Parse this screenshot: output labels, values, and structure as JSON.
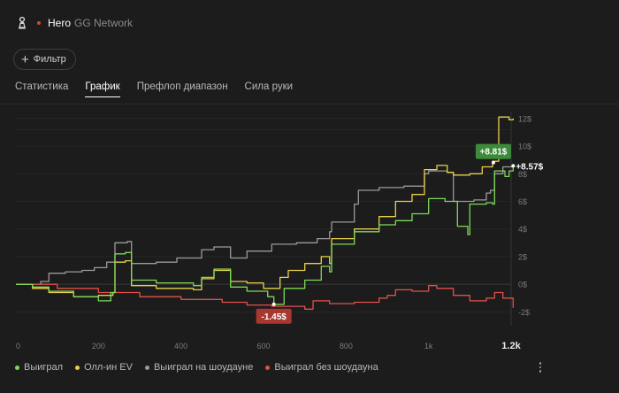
{
  "header": {
    "player": "Hero",
    "network": "GG Network"
  },
  "filter": {
    "label": "Фильтр"
  },
  "tabs": [
    {
      "label": "Статистика",
      "active": false
    },
    {
      "label": "График",
      "active": true
    },
    {
      "label": "Префлоп диапазон",
      "active": false
    },
    {
      "label": "Сила руки",
      "active": false
    }
  ],
  "legend": [
    {
      "label": "Выиграл",
      "color": "#7ed957"
    },
    {
      "label": "Олл-ин EV",
      "color": "#e8d04a"
    },
    {
      "label": "Выиграл на шоудауне",
      "color": "#9a9a9a"
    },
    {
      "label": "Выиграл без шоудауна",
      "color": "#e0504b"
    }
  ],
  "chart_data": {
    "type": "line",
    "xlim": [
      0,
      1200
    ],
    "ylim": [
      -3,
      12.5
    ],
    "x_ticks": [
      {
        "value": 0,
        "label": "0"
      },
      {
        "value": 200,
        "label": "200"
      },
      {
        "value": 400,
        "label": "400"
      },
      {
        "value": 600,
        "label": "600"
      },
      {
        "value": 800,
        "label": "800"
      },
      {
        "value": 1000,
        "label": "1k"
      },
      {
        "value": 1200,
        "label": "1.2k"
      }
    ],
    "y_ticks": [
      {
        "value": 12,
        "label": "12$"
      },
      {
        "value": 10,
        "label": "10$"
      },
      {
        "value": 8,
        "label": "8$"
      },
      {
        "value": 6,
        "label": "6$"
      },
      {
        "value": 4,
        "label": "4$"
      },
      {
        "value": 2,
        "label": "2$"
      },
      {
        "value": 0,
        "label": "0$"
      },
      {
        "value": -2,
        "label": "-2$"
      }
    ],
    "series": [
      {
        "name": "Выиграл",
        "color": "#7ed957",
        "points": [
          [
            0,
            0
          ],
          [
            40,
            -0.2
          ],
          [
            80,
            -0.5
          ],
          [
            140,
            -0.9
          ],
          [
            200,
            -1.2
          ],
          [
            230,
            -0.6
          ],
          [
            240,
            2.2
          ],
          [
            265,
            2.3
          ],
          [
            280,
            0.3
          ],
          [
            340,
            0.1
          ],
          [
            430,
            -0.1
          ],
          [
            450,
            0.5
          ],
          [
            480,
            1.1
          ],
          [
            520,
            -0.2
          ],
          [
            560,
            -0.5
          ],
          [
            610,
            -0.9
          ],
          [
            625,
            -1.45
          ],
          [
            650,
            -0.3
          ],
          [
            700,
            0.3
          ],
          [
            740,
            1.3
          ],
          [
            760,
            0.9
          ],
          [
            765,
            2.9
          ],
          [
            820,
            3.8
          ],
          [
            880,
            4.3
          ],
          [
            920,
            4.6
          ],
          [
            960,
            5.1
          ],
          [
            1000,
            6.2
          ],
          [
            1040,
            6.0
          ],
          [
            1070,
            4.2
          ],
          [
            1095,
            3.6
          ],
          [
            1100,
            5.8
          ],
          [
            1140,
            5.9
          ],
          [
            1155,
            5.8
          ],
          [
            1160,
            8.2
          ],
          [
            1185,
            7.8
          ],
          [
            1195,
            8.2
          ],
          [
            1205,
            8.57
          ]
        ]
      },
      {
        "name": "Олл-ин EV",
        "color": "#e8d04a",
        "points": [
          [
            0,
            0
          ],
          [
            40,
            -0.3
          ],
          [
            80,
            -0.6
          ],
          [
            140,
            -0.9
          ],
          [
            200,
            -0.8
          ],
          [
            235,
            -0.6
          ],
          [
            240,
            1.6
          ],
          [
            265,
            1.7
          ],
          [
            280,
            -0.1
          ],
          [
            340,
            -0.3
          ],
          [
            430,
            -0.4
          ],
          [
            450,
            0.4
          ],
          [
            480,
            1.0
          ],
          [
            520,
            0.2
          ],
          [
            560,
            0.1
          ],
          [
            600,
            -0.3
          ],
          [
            640,
            0.5
          ],
          [
            660,
            1.0
          ],
          [
            700,
            1.5
          ],
          [
            740,
            2.0
          ],
          [
            760,
            1.5
          ],
          [
            765,
            3.3
          ],
          [
            820,
            4.0
          ],
          [
            880,
            4.9
          ],
          [
            920,
            6.0
          ],
          [
            960,
            6.5
          ],
          [
            990,
            8.3
          ],
          [
            1020,
            8.6
          ],
          [
            1045,
            8.1
          ],
          [
            1060,
            7.9
          ],
          [
            1080,
            7.9
          ],
          [
            1100,
            8.0
          ],
          [
            1130,
            8.5
          ],
          [
            1155,
            8.9
          ],
          [
            1170,
            12.1
          ],
          [
            1195,
            11.9
          ],
          [
            1205,
            12.0
          ]
        ]
      },
      {
        "name": "Выиграл на шоудауне",
        "color": "#9a9a9a",
        "points": [
          [
            0,
            0
          ],
          [
            60,
            0.2
          ],
          [
            80,
            0.8
          ],
          [
            120,
            0.9
          ],
          [
            160,
            1.0
          ],
          [
            190,
            1.2
          ],
          [
            220,
            1.6
          ],
          [
            240,
            3.0
          ],
          [
            270,
            3.1
          ],
          [
            280,
            1.5
          ],
          [
            340,
            1.6
          ],
          [
            390,
            1.9
          ],
          [
            430,
            1.9
          ],
          [
            450,
            2.5
          ],
          [
            480,
            2.7
          ],
          [
            520,
            1.9
          ],
          [
            560,
            2.4
          ],
          [
            620,
            2.9
          ],
          [
            680,
            3.0
          ],
          [
            730,
            3.3
          ],
          [
            760,
            3.8
          ],
          [
            765,
            4.5
          ],
          [
            820,
            5.8
          ],
          [
            830,
            6.8
          ],
          [
            880,
            7.0
          ],
          [
            940,
            7.1
          ],
          [
            990,
            8.0
          ],
          [
            1000,
            8.2
          ],
          [
            1045,
            8.1
          ],
          [
            1060,
            6.0
          ],
          [
            1110,
            6.1
          ],
          [
            1140,
            6.6
          ],
          [
            1150,
            6.8
          ],
          [
            1160,
            8.0
          ],
          [
            1180,
            8.5
          ],
          [
            1205,
            8.6
          ]
        ]
      },
      {
        "name": "Выиграл без шоудауна",
        "color": "#e0504b",
        "points": [
          [
            0,
            0
          ],
          [
            100,
            -0.3
          ],
          [
            200,
            -0.6
          ],
          [
            300,
            -0.9
          ],
          [
            400,
            -1.1
          ],
          [
            500,
            -1.3
          ],
          [
            560,
            -1.5
          ],
          [
            620,
            -1.6
          ],
          [
            700,
            -1.8
          ],
          [
            720,
            -1.2
          ],
          [
            760,
            -1.4
          ],
          [
            820,
            -1.3
          ],
          [
            880,
            -1.0
          ],
          [
            900,
            -0.8
          ],
          [
            920,
            -0.4
          ],
          [
            960,
            -0.5
          ],
          [
            1000,
            -0.1
          ],
          [
            1020,
            -0.3
          ],
          [
            1060,
            -0.8
          ],
          [
            1100,
            -1.2
          ],
          [
            1140,
            -1.0
          ],
          [
            1160,
            -0.6
          ],
          [
            1180,
            -1.0
          ],
          [
            1205,
            -1.7
          ]
        ]
      }
    ],
    "annotations": [
      {
        "label": "+8.81$",
        "x": 1157,
        "y": 8.81,
        "style": "box",
        "color": "#3d8b3a"
      },
      {
        "label": "+8.57$",
        "x": 1205,
        "y": 8.57,
        "style": "text",
        "color": "#ffffff"
      },
      {
        "label": "-1.45$",
        "x": 625,
        "y": -1.45,
        "style": "box",
        "color": "#a8372f"
      }
    ]
  }
}
